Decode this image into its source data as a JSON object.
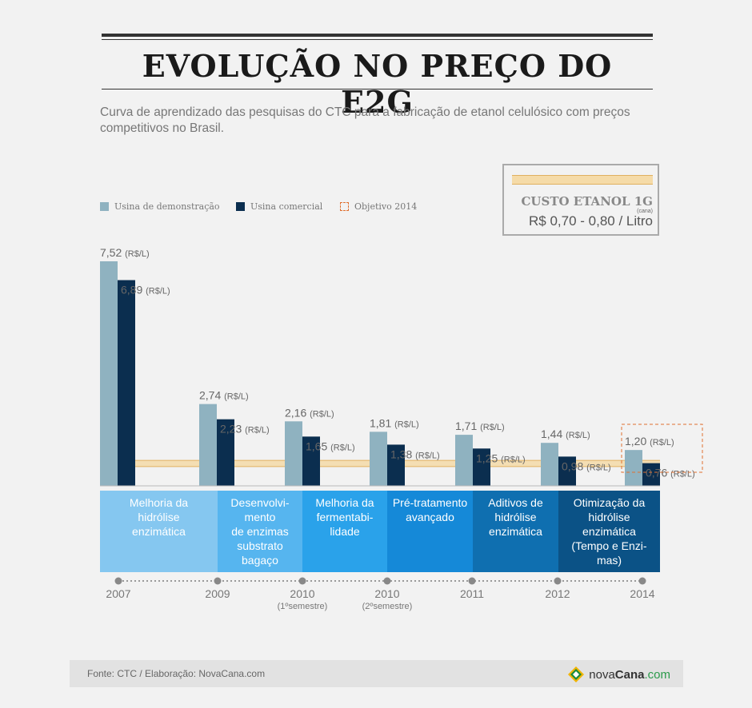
{
  "title": "EVOLUÇÃO NO PREÇO DO E2G",
  "subtitle": "Curva de aprendizado das pesquisas do CTC para a fabricação de etanol celulósico com preços competitivos no Brasil.",
  "legend": {
    "demo": "Usina de demonstração",
    "comercial": "Usina comercial",
    "objetivo": "Objetivo 2014"
  },
  "cost_box": {
    "title": "CUSTO ETANOL 1G",
    "sub": "(cana)",
    "value": "R$ 0,70 - 0,80 / Litro"
  },
  "chart_data": {
    "type": "bar",
    "unit": "(R$/L)",
    "categories": [
      "2007",
      "2009",
      "2010",
      "2010",
      "2011",
      "2012",
      "2014"
    ],
    "category_notes": [
      "",
      "",
      "(1ºsemestre)",
      "(2ºsemestre)",
      "",
      "",
      ""
    ],
    "series": [
      {
        "name": "Usina de demonstração",
        "color": "#8fb2c0",
        "values": [
          7.52,
          2.74,
          2.16,
          1.81,
          1.71,
          1.44,
          1.2
        ],
        "labels": [
          "7,52",
          "2,74",
          "2,16",
          "1,81",
          "1,71",
          "1,44",
          "1,20"
        ]
      },
      {
        "name": "Usina comercial",
        "color": "#0b2e4f",
        "values": [
          6.89,
          2.23,
          1.65,
          1.38,
          1.25,
          0.98,
          0.76
        ],
        "labels": [
          "6,89",
          "2,23",
          "1,65",
          "1,38",
          "1,25",
          "0,98",
          "0,76"
        ]
      }
    ],
    "reference_band": {
      "from": 0.7,
      "to": 0.8,
      "color": "#f5dba8"
    },
    "ylim": [
      0,
      7.52
    ]
  },
  "stages": [
    {
      "label": "Melhoria da\nhidrólise\nenzimática",
      "color": "#85c7f0"
    },
    {
      "label": "Desenvolvi-\nmento\nde enzimas\nsubstrato\nbagaço",
      "color": "#56b5ef"
    },
    {
      "label": "Melhoria da\nfermentabi-\nlidade",
      "color": "#2aa2ea"
    },
    {
      "label": "Pré-tratamento\navançado",
      "color": "#1589d8"
    },
    {
      "label": "Aditivos de\nhidrólise\nenzimática",
      "color": "#0f6fb0"
    },
    {
      "label": "Otimização da\nhidrólise\nenzimática\n(Tempo e Enzi-\nmas)",
      "color": "#0b5286"
    }
  ],
  "footer": {
    "source": "Fonte: CTC / Elaboração: NovaCana.com",
    "logo_a": "nova",
    "logo_b": "Cana",
    "logo_c": ".com"
  }
}
